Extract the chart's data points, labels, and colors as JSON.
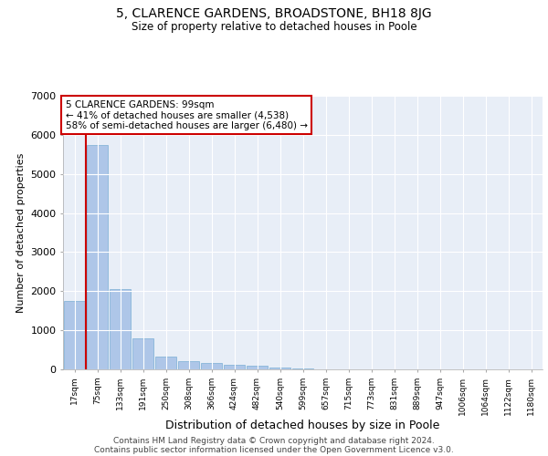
{
  "title": "5, CLARENCE GARDENS, BROADSTONE, BH18 8JG",
  "subtitle": "Size of property relative to detached houses in Poole",
  "xlabel": "Distribution of detached houses by size in Poole",
  "ylabel": "Number of detached properties",
  "footer_line1": "Contains HM Land Registry data © Crown copyright and database right 2024.",
  "footer_line2": "Contains public sector information licensed under the Open Government Licence v3.0.",
  "bar_labels": [
    "17sqm",
    "75sqm",
    "133sqm",
    "191sqm",
    "250sqm",
    "308sqm",
    "366sqm",
    "424sqm",
    "482sqm",
    "540sqm",
    "599sqm",
    "657sqm",
    "715sqm",
    "773sqm",
    "831sqm",
    "889sqm",
    "947sqm",
    "1006sqm",
    "1064sqm",
    "1122sqm",
    "1180sqm"
  ],
  "bar_values": [
    1750,
    5750,
    2050,
    800,
    330,
    210,
    170,
    110,
    90,
    55,
    30,
    0,
    0,
    0,
    0,
    0,
    0,
    0,
    0,
    0,
    0
  ],
  "bar_color": "#aec6e8",
  "bar_edge_color": "#7aafd4",
  "bg_color": "#e8eef7",
  "grid_color": "#ffffff",
  "vline_x": 0.5,
  "annotation_text": "5 CLARENCE GARDENS: 99sqm\n← 41% of detached houses are smaller (4,538)\n58% of semi-detached houses are larger (6,480) →",
  "annotation_box_color": "#ffffff",
  "annotation_box_edge": "#cc0000",
  "vline_color": "#cc0000",
  "ylim": [
    0,
    7000
  ],
  "yticks": [
    0,
    1000,
    2000,
    3000,
    4000,
    5000,
    6000,
    7000
  ]
}
